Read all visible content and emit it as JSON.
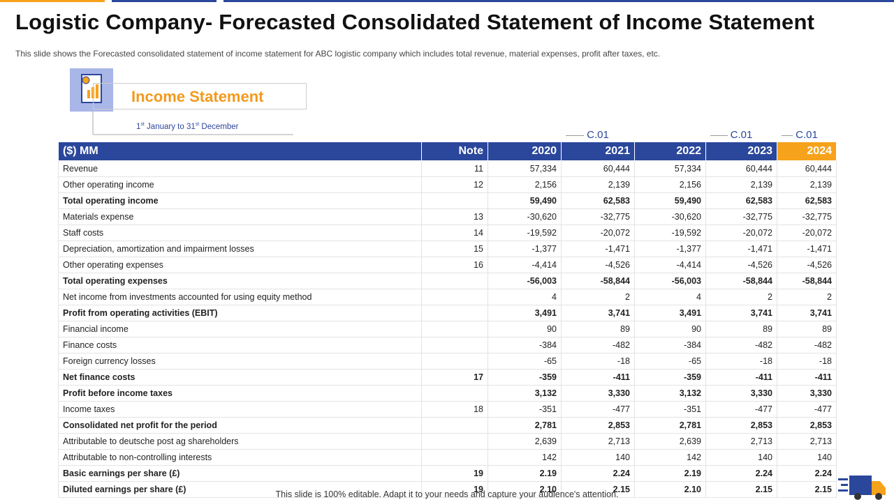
{
  "header": {
    "title": "Logistic Company- Forecasted Consolidated Statement of Income Statement",
    "subtitle": "This slide shows the Forecasted consolidated statement of income statement for ABC logistic company which includes total revenue,  material expenses, profit after taxes, etc."
  },
  "section": {
    "title": "Income Statement",
    "date_range": [
      "1",
      "st",
      " January to 31",
      "st",
      " December"
    ]
  },
  "table": {
    "columns": [
      {
        "label": "($) MM"
      },
      {
        "label": "Note"
      },
      {
        "label": "2020"
      },
      {
        "label": "2021",
        "note": "C.01"
      },
      {
        "label": "2022"
      },
      {
        "label": "2023",
        "note": "C.01"
      },
      {
        "label": "2024",
        "note": "C.01",
        "highlight": true
      }
    ],
    "rows": [
      {
        "label": "Revenue",
        "note": "11",
        "values": [
          "57,334",
          "60,444",
          "57,334",
          "60,444",
          "60,444"
        ]
      },
      {
        "label": "Other operating income",
        "note": "12",
        "values": [
          "2,156",
          "2,139",
          "2,156",
          "2,139",
          "2,139"
        ]
      },
      {
        "label": "Total operating income",
        "values": [
          "59,490",
          "62,583",
          "59,490",
          "62,583",
          "62,583"
        ],
        "bold": true
      },
      {
        "label": "Materials expense",
        "note": "13",
        "values": [
          "-30,620",
          "-32,775",
          "-30,620",
          "-32,775",
          "-32,775"
        ]
      },
      {
        "label": "Staff costs",
        "note": "14",
        "values": [
          "-19,592",
          "-20,072",
          "-19,592",
          "-20,072",
          "-20,072"
        ]
      },
      {
        "label": "Depreciation,  amortization and impairment losses",
        "note": "15",
        "values": [
          "-1,377",
          "-1,471",
          "-1,377",
          "-1,471",
          "-1,471"
        ]
      },
      {
        "label": "Other operating expenses",
        "note": "16",
        "values": [
          "-4,414",
          "-4,526",
          "-4,414",
          "-4,526",
          "-4,526"
        ]
      },
      {
        "label": "Total operating expenses",
        "values": [
          "-56,003",
          "-58,844",
          "-56,003",
          "-58,844",
          "-58,844"
        ],
        "bold": true
      },
      {
        "label": "Net income from investments accounted for using equity method",
        "values": [
          "4",
          "2",
          "4",
          "2",
          "2"
        ]
      },
      {
        "label": "Profit from operating activities (EBIT)",
        "values": [
          "3,491",
          "3,741",
          "3,491",
          "3,741",
          "3,741"
        ],
        "bold": true
      },
      {
        "label": "Financial income",
        "values": [
          "90",
          "89",
          "90",
          "89",
          "89"
        ]
      },
      {
        "label": "Finance costs",
        "values": [
          "-384",
          "-482",
          "-384",
          "-482",
          "-482"
        ]
      },
      {
        "label": "Foreign currency losses",
        "values": [
          "-65",
          "-18",
          "-65",
          "-18",
          "-18"
        ]
      },
      {
        "label": "Net finance costs",
        "note": "17",
        "values": [
          "-359",
          "-411",
          "-359",
          "-411",
          "-411"
        ],
        "bold": true
      },
      {
        "label": "Profit before income taxes",
        "values": [
          "3,132",
          "3,330",
          "3,132",
          "3,330",
          "3,330"
        ],
        "bold": true
      },
      {
        "label": "Income taxes",
        "note": "18",
        "values": [
          "-351",
          "-477",
          "-351",
          "-477",
          "-477"
        ]
      },
      {
        "label": "Consolidated net profit for the period",
        "values": [
          "2,781",
          "2,853",
          "2,781",
          "2,853",
          "2,853"
        ],
        "bold": true
      },
      {
        "label": "Attributable to deutsche post ag shareholders",
        "values": [
          "2,639",
          "2,713",
          "2,639",
          "2,713",
          "2,713"
        ]
      },
      {
        "label": "Attributable to non-controlling interests",
        "values": [
          "142",
          "140",
          "142",
          "140",
          "140"
        ]
      },
      {
        "label": "Basic earnings per share (£)",
        "note": "19",
        "values": [
          "2.19",
          "2.24",
          "2.19",
          "2.24",
          "2.24"
        ],
        "bold": true
      },
      {
        "label": "Diluted earnings per share (£)",
        "note": "19",
        "values": [
          "2.10",
          "2.15",
          "2.10",
          "2.15",
          "2.15"
        ],
        "bold": true
      }
    ]
  },
  "footer": "This slide is 100% editable. Adapt it to your needs and capture your audience's attention."
}
